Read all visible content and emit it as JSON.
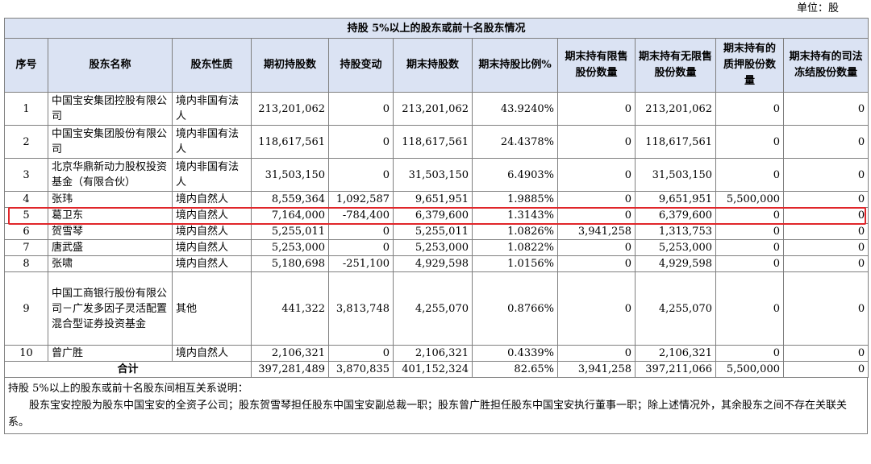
{
  "unit": "单位：股",
  "caption": "持股 5%以上的股东或前十名股东情况",
  "headers": [
    "序号",
    "股东名称",
    "股东性质",
    "期初持股数",
    "持股变动",
    "期末持股数",
    "期末持股比例%",
    "期末持有限售股份数量",
    "期末持有无限售股份数量",
    "期末持有的质押股份数量",
    "期末持有的司法冻结股份数量"
  ],
  "rows": [
    [
      "1",
      "中国宝安集团控股有限公司",
      "境内非国有法人",
      "213,201,062",
      "0",
      "213,201,062",
      "43.9240%",
      "0",
      "213,201,062",
      "0",
      "0"
    ],
    [
      "2",
      "中国宝安集团股份有限公司",
      "境内非国有法人",
      "118,617,561",
      "0",
      "118,617,561",
      "24.4378%",
      "0",
      "118,617,561",
      "0",
      "0"
    ],
    [
      "3",
      "北京华鼎新动力股权投资基金（有限合伙）",
      "境内非国有法人",
      "31,503,150",
      "0",
      "31,503,150",
      "6.4903%",
      "0",
      "31,503,150",
      "0",
      "0"
    ],
    [
      "4",
      "张玮",
      "境内自然人",
      "8,559,364",
      "1,092,587",
      "9,651,951",
      "1.9885%",
      "0",
      "9,651,951",
      "5,500,000",
      "0"
    ],
    [
      "5",
      "葛卫东",
      "境内自然人",
      "7,164,000",
      "-784,400",
      "6,379,600",
      "1.3143%",
      "0",
      "6,379,600",
      "0",
      "0"
    ],
    [
      "6",
      "贺雪琴",
      "境内自然人",
      "5,255,011",
      "0",
      "5,255,011",
      "1.0826%",
      "3,941,258",
      "1,313,753",
      "0",
      "0"
    ],
    [
      "7",
      "唐武盛",
      "境内自然人",
      "5,253,000",
      "0",
      "5,253,000",
      "1.0822%",
      "0",
      "5,253,000",
      "0",
      "0"
    ],
    [
      "8",
      "张啸",
      "境内自然人",
      "5,180,698",
      "-251,100",
      "4,929,598",
      "1.0156%",
      "0",
      "4,929,598",
      "0",
      "0"
    ],
    [
      "9",
      "中国工商银行股份有限公司－广发多因子灵活配置混合型证券投资基金",
      "其他",
      "441,322",
      "3,813,748",
      "4,255,070",
      "0.8766%",
      "0",
      "4,255,070",
      "0",
      "0"
    ],
    [
      "10",
      "曾广胜",
      "境内自然人",
      "2,106,321",
      "0",
      "2,106,321",
      "0.4339%",
      "0",
      "2,106,321",
      "0",
      "0"
    ]
  ],
  "total": {
    "label": "合计",
    "values": [
      "397,281,489",
      "3,870,835",
      "401,152,324",
      "82.65%",
      "3,941,258",
      "397,211,066",
      "5,500,000",
      "0"
    ]
  },
  "note_title": "持股 5%以上的股东或前十名股东间相互关系说明：",
  "note_body": "股东宝安控股为股东中国宝安的全资子公司；股东贺雪琴担任股东中国宝安副总裁一职；股东曾广胜担任股东中国宝安执行董事一职；除上述情况外，其余股东之间不存在关联关系。",
  "highlight_color": "#e0262a",
  "header_bg": "#dbe3f3"
}
